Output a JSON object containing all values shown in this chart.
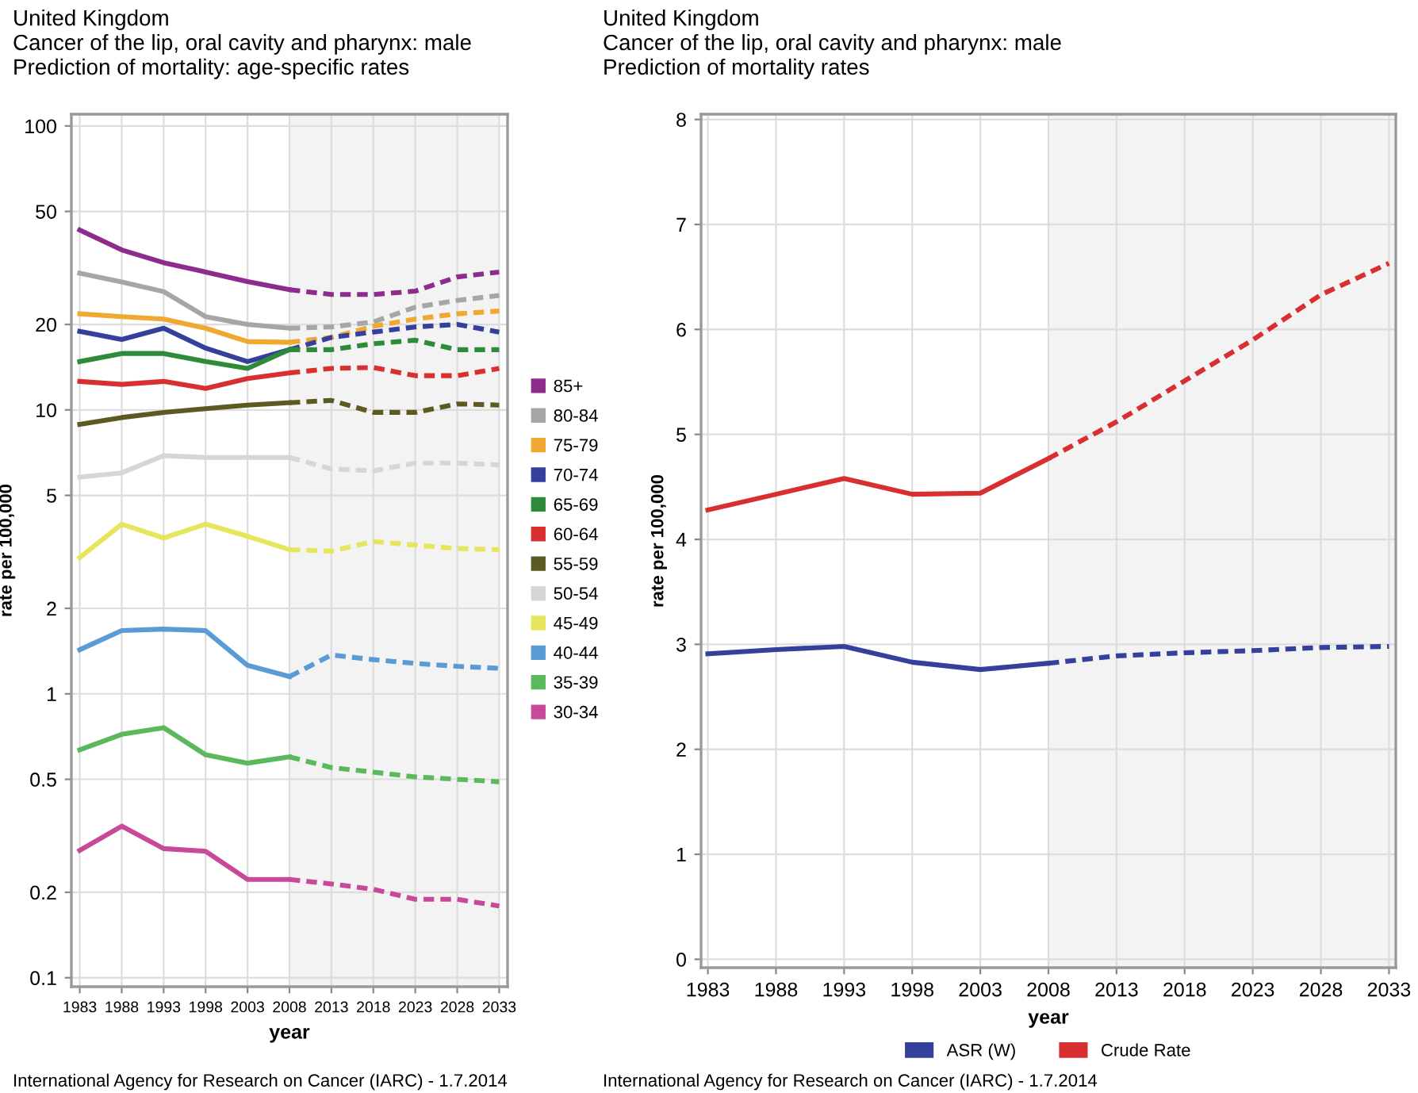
{
  "chart_data": [
    {
      "type": "line",
      "title": "United Kingdom",
      "subtitle": "Cancer of the lip, oral cavity and pharynx: male\nPrediction of mortality: age-specific rates",
      "xlabel": "year",
      "ylabel": "rate per 100,000",
      "annotations": [
        "International Agency for Research on Cancer (IARC) - 1.7.2014"
      ],
      "x": [
        1983,
        1988,
        1993,
        1998,
        2003,
        2008,
        2013,
        2018,
        2023,
        2028,
        2033
      ],
      "xlim": [
        1982,
        2034
      ],
      "xticks": [
        1983,
        1988,
        1993,
        1998,
        2003,
        2008,
        2013,
        2018,
        2023,
        2028,
        2033
      ],
      "log": true,
      "ylim": [
        0.093,
        110
      ],
      "yticks": [
        0.1,
        0.2,
        0.5,
        1,
        2,
        5,
        10,
        20,
        50,
        100
      ],
      "grid": true,
      "legend": "right",
      "marker": "none",
      "bands": [
        {
          "axis": "x",
          "from": 2008,
          "to": 2033,
          "color": "#f3f3f3"
        }
      ],
      "series": [
        {
          "name": "85+",
          "color": "#8e2c8e",
          "line_style": "solid",
          "values": [
            43,
            36.6,
            33,
            30.6,
            28.3,
            26.5,
            null,
            null,
            null,
            null,
            null
          ]
        },
        {
          "name": "80-84",
          "color": "#a6a6a6",
          "line_style": "solid",
          "values": [
            30.3,
            28.2,
            26.1,
            21.3,
            20.0,
            19.4,
            null,
            null,
            null,
            null,
            null
          ]
        },
        {
          "name": "75-79",
          "color": "#f0a830",
          "line_style": "solid",
          "values": [
            21.8,
            21.3,
            20.9,
            19.4,
            17.4,
            17.3,
            null,
            null,
            null,
            null,
            null
          ]
        },
        {
          "name": "70-74",
          "color": "#34409c",
          "line_style": "solid",
          "values": [
            18.9,
            17.7,
            19.4,
            16.5,
            14.8,
            16.3,
            null,
            null,
            null,
            null,
            null
          ]
        },
        {
          "name": "65-69",
          "color": "#2e8b3a",
          "line_style": "solid",
          "values": [
            14.8,
            15.8,
            15.8,
            14.8,
            14.0,
            16.3,
            null,
            null,
            null,
            null,
            null
          ]
        },
        {
          "name": "60-64",
          "color": "#d83030",
          "line_style": "solid",
          "values": [
            12.6,
            12.3,
            12.6,
            11.9,
            12.9,
            13.5,
            null,
            null,
            null,
            null,
            null
          ]
        },
        {
          "name": "55-59",
          "color": "#5c5a22",
          "line_style": "solid",
          "values": [
            8.9,
            9.4,
            9.8,
            10.1,
            10.4,
            10.6,
            null,
            null,
            null,
            null,
            null
          ]
        },
        {
          "name": "50-54",
          "color": "#d6d6d6",
          "line_style": "solid",
          "values": [
            5.8,
            6.0,
            6.9,
            6.8,
            6.8,
            6.8,
            null,
            null,
            null,
            null,
            null
          ]
        },
        {
          "name": "45-49",
          "color": "#e6e65c",
          "line_style": "solid",
          "values": [
            3.02,
            3.96,
            3.54,
            3.96,
            3.59,
            3.22,
            null,
            null,
            null,
            null,
            null
          ]
        },
        {
          "name": "40-44",
          "color": "#5b9bd5",
          "line_style": "solid",
          "values": [
            1.43,
            1.67,
            1.69,
            1.67,
            1.26,
            1.15,
            null,
            null,
            null,
            null,
            null
          ]
        },
        {
          "name": "35-39",
          "color": "#5cb85c",
          "line_style": "solid",
          "values": [
            0.635,
            0.72,
            0.76,
            0.61,
            0.57,
            0.6,
            null,
            null,
            null,
            null,
            null
          ]
        },
        {
          "name": "30-34",
          "color": "#c8489a",
          "line_style": "solid",
          "values": [
            0.281,
            0.342,
            0.285,
            0.279,
            0.222,
            0.222,
            null,
            null,
            null,
            null,
            null
          ]
        },
        {
          "color": "#8e2c8e",
          "line_style": "dashed",
          "values": [
            null,
            null,
            null,
            null,
            null,
            26.5,
            25.5,
            25.5,
            26.2,
            29.4,
            30.6
          ]
        },
        {
          "color": "#a6a6a6",
          "line_style": "dashed",
          "values": [
            null,
            null,
            null,
            null,
            null,
            19.4,
            19.6,
            20.4,
            23.0,
            24.3,
            25.3
          ]
        },
        {
          "color": "#f0a830",
          "line_style": "dashed",
          "values": [
            null,
            null,
            null,
            null,
            null,
            17.3,
            18.0,
            19.7,
            20.9,
            21.8,
            22.3
          ]
        },
        {
          "color": "#34409c",
          "line_style": "dashed",
          "values": [
            null,
            null,
            null,
            null,
            null,
            16.3,
            18.0,
            18.8,
            19.6,
            20.0,
            18.8
          ]
        },
        {
          "color": "#2e8b3a",
          "line_style": "dashed",
          "values": [
            null,
            null,
            null,
            null,
            null,
            16.3,
            16.3,
            17.1,
            17.6,
            16.3,
            16.3
          ]
        },
        {
          "color": "#d83030",
          "line_style": "dashed",
          "values": [
            null,
            null,
            null,
            null,
            null,
            13.5,
            14.0,
            14.1,
            13.2,
            13.2,
            14.0
          ]
        },
        {
          "color": "#5c5a22",
          "line_style": "dashed",
          "values": [
            null,
            null,
            null,
            null,
            null,
            10.6,
            10.8,
            9.8,
            9.8,
            10.5,
            10.4
          ]
        },
        {
          "color": "#d6d6d6",
          "line_style": "dashed",
          "values": [
            null,
            null,
            null,
            null,
            null,
            6.8,
            6.2,
            6.1,
            6.5,
            6.5,
            6.4
          ]
        },
        {
          "color": "#e6e65c",
          "line_style": "dashed",
          "values": [
            null,
            null,
            null,
            null,
            null,
            3.22,
            3.18,
            3.44,
            3.34,
            3.25,
            3.22
          ]
        },
        {
          "color": "#5b9bd5",
          "line_style": "dashed",
          "values": [
            null,
            null,
            null,
            null,
            null,
            1.15,
            1.37,
            1.32,
            1.28,
            1.25,
            1.23
          ]
        },
        {
          "color": "#5cb85c",
          "line_style": "dashed",
          "values": [
            null,
            null,
            null,
            null,
            null,
            0.6,
            0.55,
            0.53,
            0.51,
            0.5,
            0.49
          ]
        },
        {
          "color": "#c8489a",
          "line_style": "dashed",
          "values": [
            null,
            null,
            null,
            null,
            null,
            0.222,
            0.214,
            0.205,
            0.189,
            0.189,
            0.179
          ]
        }
      ]
    },
    {
      "type": "line",
      "title": "United Kingdom",
      "subtitle": "Cancer of the lip, oral cavity and pharynx: male\nPrediction of mortality rates",
      "xlabel": "year",
      "ylabel": "rate per 100,000",
      "annotations": [
        "International Agency for Research on Cancer (IARC) - 1.7.2014"
      ],
      "x": [
        1983,
        1988,
        1993,
        1998,
        2003,
        2008,
        2013,
        2018,
        2023,
        2028,
        2033
      ],
      "xlim": [
        1982.5,
        2033.5
      ],
      "xticks": [
        1983,
        1988,
        1993,
        1998,
        2003,
        2008,
        2013,
        2018,
        2023,
        2028,
        2033
      ],
      "ylim": [
        -0.08,
        8.05
      ],
      "yticks": [
        0,
        1,
        2,
        3,
        4,
        5,
        6,
        7,
        8
      ],
      "grid": true,
      "legend": "bottom",
      "marker": "none",
      "bands": [
        {
          "axis": "x",
          "from": 2008,
          "to": 2033.5,
          "color": "#f3f3f3"
        }
      ],
      "series": [
        {
          "name": "ASR (W)",
          "color": "#34409c",
          "line_style": "solid",
          "values": [
            2.91,
            2.95,
            2.98,
            2.83,
            2.76,
            2.82,
            null,
            null,
            null,
            null,
            null
          ]
        },
        {
          "name": "Crude Rate",
          "color": "#d83030",
          "line_style": "solid",
          "values": [
            4.28,
            4.43,
            4.58,
            4.43,
            4.44,
            4.77,
            null,
            null,
            null,
            null,
            null
          ]
        },
        {
          "color": "#34409c",
          "line_style": "dashed",
          "values": [
            null,
            null,
            null,
            null,
            null,
            2.82,
            2.89,
            2.92,
            2.94,
            2.97,
            2.98
          ]
        },
        {
          "color": "#d83030",
          "line_style": "dashed",
          "values": [
            null,
            null,
            null,
            null,
            null,
            4.77,
            5.12,
            5.51,
            5.9,
            6.33,
            6.63
          ]
        }
      ]
    }
  ]
}
